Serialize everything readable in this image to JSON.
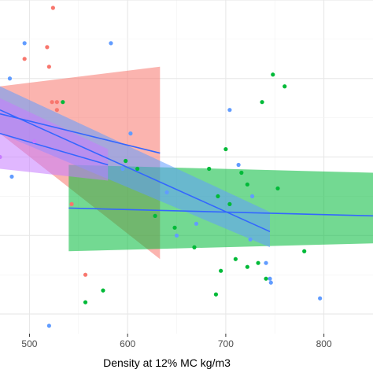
{
  "chart_data": {
    "type": "scatter",
    "title": "",
    "xlabel": "Density at 12% MC kg/m3",
    "ylabel": "",
    "xlim": [
      470,
      850
    ],
    "x_ticks": [
      500,
      600,
      700,
      800
    ],
    "x_tick_labels": [
      "500",
      "600",
      "700",
      "800"
    ],
    "grid": true,
    "legend": "none",
    "series": [
      {
        "color": "#F8766D",
        "points": [
          [
            524,
            0.98
          ],
          [
            518,
            0.88
          ],
          [
            495,
            0.85
          ],
          [
            520,
            0.83
          ],
          [
            523,
            0.74
          ],
          [
            528,
            0.74
          ],
          [
            528,
            0.72
          ],
          [
            543,
            0.48
          ],
          [
            557,
            0.3
          ]
        ],
        "fit": {
          "x": [
            470,
            633
          ],
          "y": [
            0.71,
            0.61
          ],
          "band_low": [
            0.66,
            0.34
          ],
          "band_high": [
            0.78,
            0.83
          ]
        }
      },
      {
        "color": "#00BA38",
        "points": [
          [
            534,
            0.74
          ],
          [
            610,
            0.57
          ],
          [
            683,
            0.57
          ],
          [
            722,
            0.53
          ],
          [
            753,
            0.52
          ],
          [
            692,
            0.5
          ],
          [
            748,
            0.81
          ],
          [
            760,
            0.78
          ],
          [
            737,
            0.74
          ],
          [
            704,
            0.48
          ],
          [
            668,
            0.37
          ],
          [
            710,
            0.34
          ],
          [
            733,
            0.33
          ],
          [
            780,
            0.36
          ],
          [
            722,
            0.32
          ],
          [
            695,
            0.31
          ],
          [
            741,
            0.29
          ],
          [
            557,
            0.23
          ],
          [
            575,
            0.26
          ],
          [
            690,
            0.25
          ],
          [
            648,
            0.42
          ],
          [
            628,
            0.45
          ],
          [
            598,
            0.59
          ],
          [
            700,
            0.62
          ],
          [
            716,
            0.56
          ]
        ],
        "fit": {
          "x": [
            540,
            850
          ],
          "y": [
            0.47,
            0.45
          ],
          "band_low": [
            0.36,
            0.38
          ],
          "band_high": [
            0.58,
            0.56
          ]
        }
      },
      {
        "color": "#619CFF",
        "points": [
          [
            495,
            0.89
          ],
          [
            480,
            0.8
          ],
          [
            583,
            0.89
          ],
          [
            603,
            0.66
          ],
          [
            704,
            0.72
          ],
          [
            713,
            0.58
          ],
          [
            727,
            0.5
          ],
          [
            725,
            0.39
          ],
          [
            741,
            0.33
          ],
          [
            745,
            0.29
          ],
          [
            796,
            0.24
          ],
          [
            746,
            0.28
          ],
          [
            482,
            0.55
          ],
          [
            520,
            0.17
          ],
          [
            595,
            0.57
          ],
          [
            640,
            0.51
          ],
          [
            670,
            0.43
          ],
          [
            650,
            0.4
          ]
        ],
        "fit": {
          "x": [
            470,
            745
          ],
          "y": [
            0.72,
            0.41
          ],
          "band_low": [
            0.66,
            0.37
          ],
          "band_high": [
            0.78,
            0.46
          ]
        }
      },
      {
        "color": "#C77CFF",
        "points": [
          [
            470,
            0.6
          ],
          [
            505,
            0.64
          ]
        ],
        "fit": {
          "x": [
            470,
            580
          ],
          "y": [
            0.66,
            0.58
          ],
          "band_low": [
            0.57,
            0.54
          ],
          "band_high": [
            0.75,
            0.62
          ]
        }
      }
    ]
  }
}
